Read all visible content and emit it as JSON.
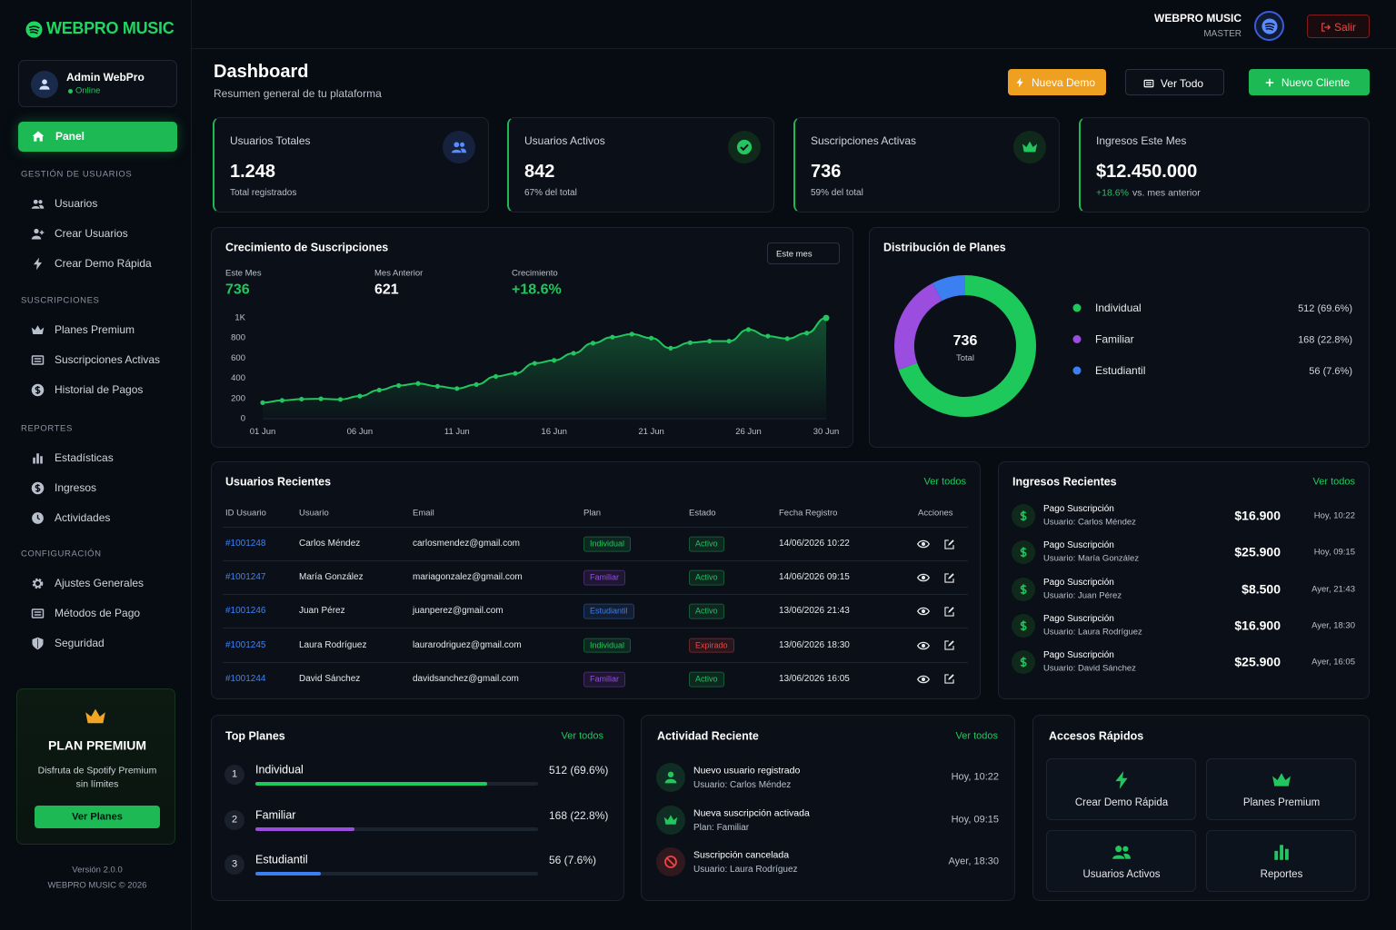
{
  "brand": "WEBPRO MUSIC",
  "user": {
    "name": "Admin WebPro",
    "status": "Online"
  },
  "header": {
    "brand": "WEBPRO MUSIC",
    "role": "MASTER",
    "logout": "Salir"
  },
  "nav": {
    "active": "Panel",
    "sections": [
      {
        "title": "GESTIÓN DE USUARIOS",
        "items": [
          "Usuarios",
          "Crear Usuarios",
          "Crear Demo Rápida"
        ]
      },
      {
        "title": "SUSCRIPCIONES",
        "items": [
          "Planes Premium",
          "Suscripciones Activas",
          "Historial de Pagos"
        ]
      },
      {
        "title": "REPORTES",
        "items": [
          "Estadísticas",
          "Ingresos",
          "Actividades"
        ]
      },
      {
        "title": "CONFIGURACIÓN",
        "items": [
          "Ajustes Generales",
          "Métodos de Pago",
          "Seguridad"
        ]
      }
    ]
  },
  "promo": {
    "title": "PLAN PREMIUM",
    "text": [
      "Disfruta de Spotify Premium",
      "sin límites"
    ],
    "button": "Ver Planes"
  },
  "footer": {
    "version": "Versión 2.0.0",
    "copyright": "WEBPRO MUSIC © 2026"
  },
  "page": {
    "title": "Dashboard",
    "subtitle": "Resumen general de tu plataforma",
    "buttons": [
      "Nueva Demo",
      "Ver Todo",
      "Nuevo Cliente"
    ]
  },
  "stats": [
    {
      "label": "Usuarios Totales",
      "value": "1.248",
      "note": "Total registrados"
    },
    {
      "label": "Usuarios Activos",
      "value": "842",
      "note": "67% del total"
    },
    {
      "label": "Suscripciones Activas",
      "value": "736",
      "note": "59% del total"
    },
    {
      "label": "Ingresos Este Mes",
      "value": "$12.450.000",
      "change": "+18.6%",
      "note": "vs. mes anterior"
    }
  ],
  "chart_data": [
    {
      "type": "line",
      "title": "Crecimiento de Suscripciones",
      "filter": "Este mes",
      "summary": [
        {
          "label": "Este Mes",
          "value": 736
        },
        {
          "label": "Mes Anterior",
          "value": 621
        },
        {
          "label": "Crecimiento",
          "value": "+18.6%"
        }
      ],
      "categories": [
        "01 Jun",
        null,
        null,
        null,
        null,
        "06 Jun",
        null,
        null,
        null,
        null,
        "11 Jun",
        null,
        null,
        null,
        null,
        "16 Jun",
        null,
        null,
        null,
        null,
        "21 Jun",
        null,
        null,
        null,
        null,
        "26 Jun",
        null,
        null,
        null,
        "30 Jun"
      ],
      "values": [
        150,
        172,
        185,
        188,
        182,
        215,
        275,
        320,
        340,
        312,
        290,
        330,
        410,
        440,
        540,
        570,
        640,
        740,
        800,
        830,
        790,
        690,
        745,
        760,
        760,
        875,
        810,
        785,
        840,
        990
      ],
      "color": "#22c55e",
      "ylim": [
        0,
        1000
      ],
      "yticks": [
        0,
        200,
        400,
        600,
        800,
        {
          "value": 1000,
          "label": "1K"
        }
      ],
      "grid": false
    },
    {
      "type": "pie",
      "title": "Distribución de Planes",
      "categories": [
        "Individual",
        "Familiar",
        "Estudiantil"
      ],
      "values": [
        512,
        168,
        56
      ],
      "value_labels": [
        "512 (69.6%)",
        "168 (22.8%)",
        "56 (7.6%)"
      ],
      "colors": [
        "#1ec95c",
        "#9b4de0",
        "#3b7ff0"
      ],
      "center_value": 736,
      "center_label": "Total"
    }
  ],
  "recent_users": {
    "title": "Usuarios Recientes",
    "link": "Ver todos",
    "columns": [
      "ID Usuario",
      "Usuario",
      "Email",
      "Plan",
      "Estado",
      "Fecha Registro",
      "Acciones"
    ],
    "rows": [
      {
        "id": "#1001248",
        "name": "Carlos Méndez",
        "email": "carlosmendez@gmail.com",
        "plan": "Individual",
        "status": "Activo",
        "status_color": "#22c55e",
        "date": "14/06/2026 10:22"
      },
      {
        "id": "#1001247",
        "name": "María González",
        "email": "mariagonzalez@gmail.com",
        "plan": "Familiar",
        "status": "Activo",
        "status_color": "#22c55e",
        "date": "14/06/2026 09:15"
      },
      {
        "id": "#1001246",
        "name": "Juan Pérez",
        "email": "juanperez@gmail.com",
        "plan": "Estudiantil",
        "status": "Activo",
        "status_color": "#22c55e",
        "date": "13/06/2026 21:43"
      },
      {
        "id": "#1001245",
        "name": "Laura Rodríguez",
        "email": "laurarodriguez@gmail.com",
        "plan": "Individual",
        "status": "Expirado",
        "status_color": "#ef4444",
        "date": "13/06/2026 18:30"
      },
      {
        "id": "#1001244",
        "name": "David Sánchez",
        "email": "davidsanchez@gmail.com",
        "plan": "Familiar",
        "status": "Activo",
        "status_color": "#22c55e",
        "date": "13/06/2026 16:05"
      }
    ]
  },
  "recent_income": {
    "title": "Ingresos Recientes",
    "link": "Ver todos",
    "items": [
      {
        "title": "Pago Suscripción",
        "user": "Usuario: Carlos Méndez",
        "amount": "$16.900",
        "time": "Hoy, 10:22"
      },
      {
        "title": "Pago Suscripción",
        "user": "Usuario: María González",
        "amount": "$25.900",
        "time": "Hoy, 09:15"
      },
      {
        "title": "Pago Suscripción",
        "user": "Usuario: Juan Pérez",
        "amount": "$8.500",
        "time": "Ayer, 21:43"
      },
      {
        "title": "Pago Suscripción",
        "user": "Usuario: Laura Rodríguez",
        "amount": "$16.900",
        "time": "Ayer, 18:30"
      },
      {
        "title": "Pago Suscripción",
        "user": "Usuario: David Sánchez",
        "amount": "$25.900",
        "time": "Ayer, 16:05"
      }
    ]
  },
  "top_plans": {
    "title": "Top Planes",
    "link": "Ver todos",
    "items": [
      {
        "rank": 1,
        "name": "Individual",
        "value": "512 (69.6%)",
        "progress": 82,
        "color": "#1ec95c"
      },
      {
        "rank": 2,
        "name": "Familiar",
        "value": "168 (22.8%)",
        "progress": 35,
        "color": "#9b4de0"
      },
      {
        "rank": 3,
        "name": "Estudiantil",
        "value": "56 (7.6%)",
        "progress": 23,
        "color": "#3b7ff0"
      }
    ]
  },
  "activity": {
    "title": "Actividad Reciente",
    "link": "Ver todos",
    "items": [
      {
        "title": "Nuevo usuario registrado",
        "detail": "Usuario: Carlos Méndez",
        "time": "Hoy, 10:22",
        "color": "#22c55e"
      },
      {
        "title": "Nueva suscripción activada",
        "detail": "Plan: Familiar",
        "time": "Hoy, 09:15",
        "color": "#22c55e"
      },
      {
        "title": "Suscripción cancelada",
        "detail": "Usuario: Laura Rodríguez",
        "time": "Ayer, 18:30",
        "color": "#ef4444"
      }
    ]
  },
  "quick_access": {
    "title": "Accesos Rápidos",
    "items": [
      "Crear Demo Rápida",
      "Planes Premium",
      "Usuarios Activos",
      "Reportes"
    ]
  }
}
